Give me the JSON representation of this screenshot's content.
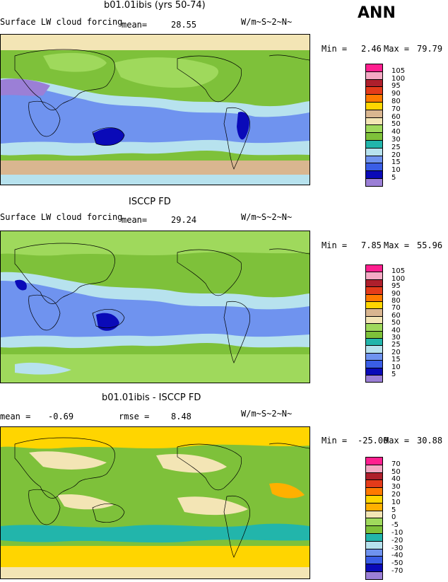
{
  "season": "ANN",
  "colors": {
    "c0": "#9b7fd6",
    "c1": "#0a0ab8",
    "c2": "#3a5ee6",
    "c3": "#6f93ef",
    "c4": "#b7e2ee",
    "c5": "#22b5ab",
    "c6": "#9fd95c",
    "c7": "#7ec13a",
    "c8": "#f3e5b5",
    "c9": "#d9b690",
    "c10": "#ffd500",
    "c11": "#ffb000",
    "c12": "#ff7a00",
    "c13": "#e43b1a",
    "c14": "#ae1f2c",
    "c15": "#f4a9c4",
    "c16": "#ff1f8f"
  },
  "panels": [
    {
      "title": "b01.01ibis (yrs 50-74)",
      "left_text": "Surface LW cloud forcing",
      "mean_label": "mean=",
      "mean_value": "28.55",
      "units": "W/m~S~2~N~",
      "min_label": "Min =",
      "min_value": "2.46",
      "max_label": "Max =",
      "max_value": "79.79",
      "legend_labels": [
        "105",
        "100",
        "95",
        "90",
        "80",
        "70",
        "60",
        "50",
        "40",
        "30",
        "25",
        "20",
        "15",
        "10",
        "5"
      ],
      "legend_colors": [
        "#ff1f8f",
        "#f4a9c4",
        "#ae1f2c",
        "#e43b1a",
        "#ff7a00",
        "#ffd500",
        "#d9b690",
        "#f3e5b5",
        "#9fd95c",
        "#7ec13a",
        "#22b5ab",
        "#b7e2ee",
        "#6f93ef",
        "#3a5ee6",
        "#0a0ab8",
        "#9b7fd6"
      ]
    },
    {
      "title": "ISCCP FD",
      "left_text": "Surface LW cloud forcing",
      "mean_label": "mean=",
      "mean_value": "29.24",
      "units": "W/m~S~2~N~",
      "min_label": "Min =",
      "min_value": "7.85",
      "max_label": "Max =",
      "max_value": "55.96",
      "legend_labels": [
        "105",
        "100",
        "95",
        "90",
        "80",
        "70",
        "60",
        "50",
        "40",
        "30",
        "25",
        "20",
        "15",
        "10",
        "5"
      ],
      "legend_colors": [
        "#ff1f8f",
        "#f4a9c4",
        "#ae1f2c",
        "#e43b1a",
        "#ff7a00",
        "#ffd500",
        "#d9b690",
        "#f3e5b5",
        "#9fd95c",
        "#7ec13a",
        "#22b5ab",
        "#b7e2ee",
        "#6f93ef",
        "#3a5ee6",
        "#0a0ab8",
        "#9b7fd6"
      ]
    },
    {
      "title": "b01.01ibis - ISCCP FD",
      "left_text": "mean =",
      "left_value": "-0.69",
      "mean_label": "rmse =",
      "mean_value": "8.48",
      "units": "W/m~S~2~N~",
      "min_label": "Min =",
      "min_value": "-25.00",
      "max_label": "Max =",
      "max_value": "30.88",
      "legend_labels": [
        "70",
        "50",
        "40",
        "30",
        "20",
        "10",
        "5",
        "0",
        "-5",
        "-10",
        "-20",
        "-30",
        "-40",
        "-50",
        "-70"
      ],
      "legend_colors": [
        "#ff1f8f",
        "#f4a9c4",
        "#ae1f2c",
        "#e43b1a",
        "#ff7a00",
        "#ffd500",
        "#ffb000",
        "#f3e5b5",
        "#9fd95c",
        "#7ec13a",
        "#22b5ab",
        "#b7e2ee",
        "#6f93ef",
        "#3a5ee6",
        "#0a0ab8",
        "#9b7fd6"
      ]
    }
  ],
  "chart_data": [
    {
      "type": "heatmap",
      "title": "b01.01ibis (yrs 50-74)",
      "subtitle": "Surface LW cloud forcing",
      "units": "W/m~S~2~N~",
      "season": "ANN",
      "mean": 28.55,
      "min": 2.46,
      "max": 79.79,
      "contour_levels": [
        5,
        10,
        15,
        20,
        25,
        30,
        40,
        50,
        60,
        70,
        80,
        90,
        95,
        100,
        105
      ]
    },
    {
      "type": "heatmap",
      "title": "ISCCP FD",
      "subtitle": "Surface LW cloud forcing",
      "units": "W/m~S~2~N~",
      "mean": 29.24,
      "min": 7.85,
      "max": 55.96,
      "contour_levels": [
        5,
        10,
        15,
        20,
        25,
        30,
        40,
        50,
        60,
        70,
        80,
        90,
        95,
        100,
        105
      ]
    },
    {
      "type": "heatmap",
      "title": "b01.01ibis - ISCCP FD",
      "units": "W/m~S~2~N~",
      "mean": -0.69,
      "rmse": 8.48,
      "min": -25.0,
      "max": 30.88,
      "contour_levels": [
        -70,
        -50,
        -40,
        -30,
        -20,
        -10,
        -5,
        0,
        5,
        10,
        20,
        30,
        40,
        50,
        70
      ]
    }
  ]
}
